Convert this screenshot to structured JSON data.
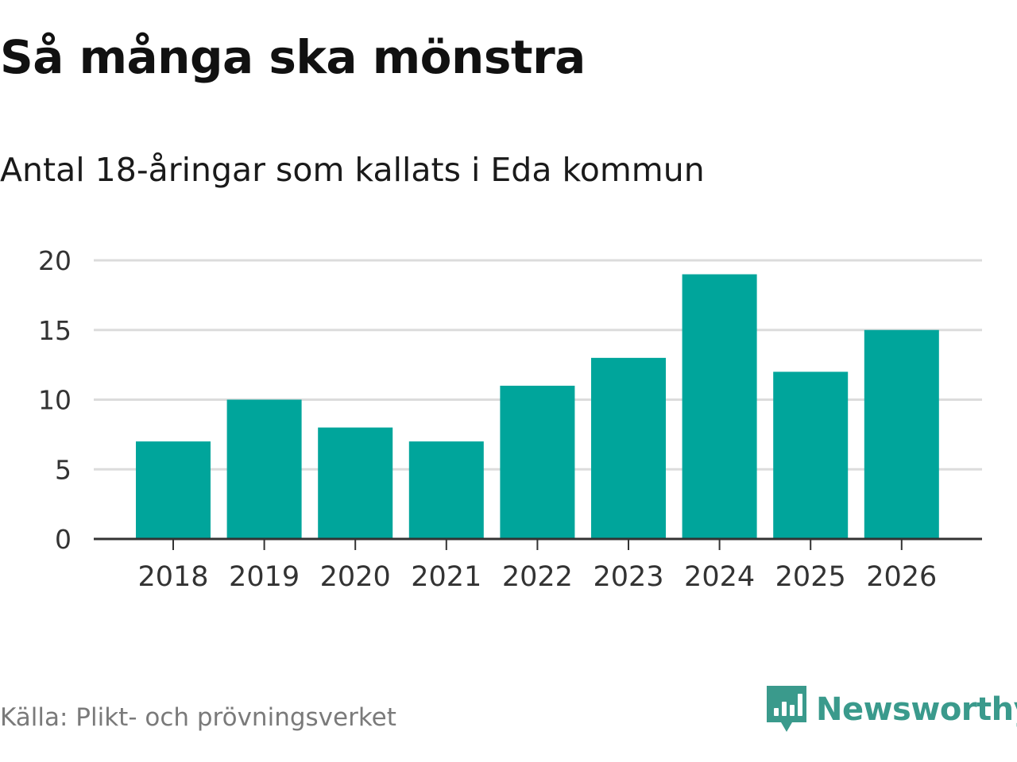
{
  "header": {
    "title": "Så många ska mönstra",
    "subtitle": "Antal 18-åringar som kallats i Eda kommun"
  },
  "footer": {
    "source": "Källa: Plikt- och prövningsverket",
    "brand": "Newsworthy",
    "brand_icon": "newsworthy-logo-icon"
  },
  "colors": {
    "bar": "#00a59b",
    "grid": "#dcdcdc",
    "axis": "#333333",
    "brand": "#3a9a8c"
  },
  "chart_data": {
    "type": "bar",
    "title": "Så många ska mönstra",
    "subtitle": "Antal 18-åringar som kallats i Eda kommun",
    "xlabel": "",
    "ylabel": "",
    "categories": [
      "2018",
      "2019",
      "2020",
      "2021",
      "2022",
      "2023",
      "2024",
      "2025",
      "2026"
    ],
    "values": [
      7,
      10,
      8,
      7,
      11,
      13,
      19,
      12,
      15
    ],
    "ylim": [
      0,
      20
    ],
    "yticks": [
      0,
      5,
      10,
      15,
      20
    ],
    "grid": true,
    "legend": "none"
  }
}
